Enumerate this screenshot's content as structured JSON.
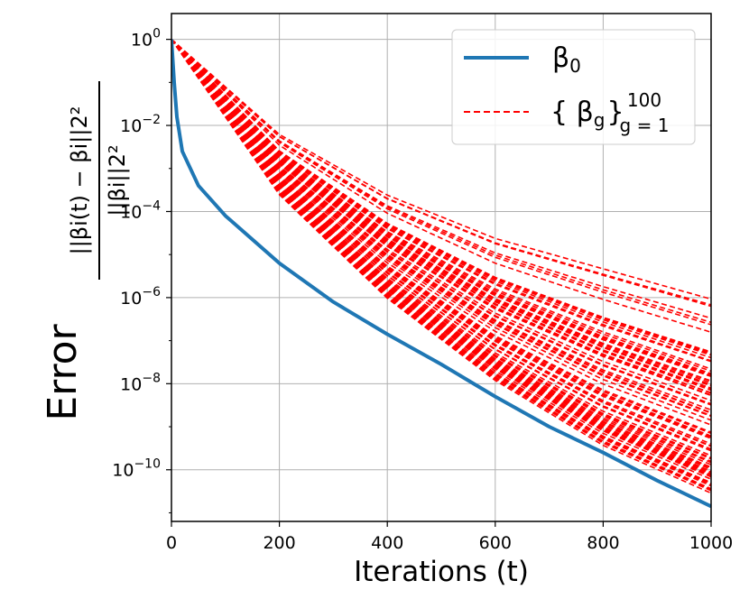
{
  "chart_data": {
    "type": "line",
    "title": "",
    "xlabel": "Iterations (t)",
    "ylabel": "Error",
    "ylabel_formula": {
      "numerator": "||βi(t) − βi||2²",
      "denominator": "||βi||2²"
    },
    "yscale": "log",
    "xlim": [
      0,
      1000
    ],
    "ylim_log10": [
      -11.2,
      0.6
    ],
    "x_ticks": [
      "0",
      "200",
      "400",
      "600",
      "800",
      "1000"
    ],
    "y_ticks": [
      {
        "base": "10",
        "exp": "0"
      },
      {
        "base": "10",
        "exp": "−2"
      },
      {
        "base": "10",
        "exp": "−4"
      },
      {
        "base": "10",
        "exp": "−6"
      },
      {
        "base": "10",
        "exp": "−8"
      },
      {
        "base": "10",
        "exp": "−10"
      }
    ],
    "grid": true,
    "legend_position": "top-right",
    "series": [
      {
        "name": "β0",
        "legend_label": "β",
        "legend_sub": "0",
        "color": "#1f77b4",
        "style": "solid",
        "x": [
          0,
          5,
          10,
          20,
          50,
          100,
          200,
          300,
          400,
          500,
          600,
          700,
          800,
          900,
          1000
        ],
        "log10_y": [
          0.0,
          -1.0,
          -1.8,
          -2.6,
          -3.4,
          -4.1,
          -5.2,
          -6.1,
          -6.85,
          -7.55,
          -8.3,
          -9.0,
          -9.6,
          -10.25,
          -10.85
        ]
      },
      {
        "name": "{ βg } g = 1 to 100",
        "legend_label": "{ β",
        "legend_sub": "g",
        "legend_suffix": "}",
        "legend_sup": "100",
        "legend_sub2": "g = 1",
        "color": "#ff0000",
        "style": "dashed",
        "count": 100,
        "x": [
          0,
          200,
          400,
          600,
          800,
          1000
        ],
        "log10_y_lower_envelope": [
          0.0,
          -3.6,
          -6.0,
          -7.9,
          -9.4,
          -10.5
        ],
        "log10_y_upper_envelope": [
          0.0,
          -2.2,
          -3.6,
          -4.6,
          -5.3,
          -6.0
        ]
      }
    ]
  }
}
